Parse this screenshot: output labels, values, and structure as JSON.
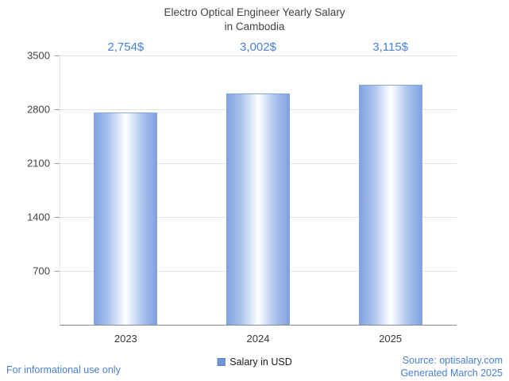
{
  "title": {
    "line1": "Electro Optical Engineer Yearly Salary",
    "line2": "in Cambodia"
  },
  "chart_data": {
    "type": "bar",
    "title": "Electro Optical Engineer Yearly Salary in Cambodia",
    "categories": [
      "2023",
      "2024",
      "2025"
    ],
    "series": [
      {
        "name": "Salary in USD",
        "values": [
          2754,
          3002,
          3115
        ]
      }
    ],
    "value_labels": [
      "2,754$",
      "3,002$",
      "3,115$"
    ],
    "xlabel": "",
    "ylabel": "",
    "ylim": [
      0,
      3500
    ],
    "yticks": [
      700,
      1400,
      2100,
      2800,
      3500
    ],
    "grid": true,
    "legend_position": "bottom",
    "colors": {
      "bar_edge": "#7fa3e0",
      "bar_center": "#ffffff",
      "value_label_text": "#4a80d6",
      "footer_text": "#4a80d6",
      "title_text": "#424242"
    }
  },
  "legend": {
    "label": "Salary in USD"
  },
  "footer": {
    "disclaimer": "For informational use only",
    "source": "Source: optisalary.com",
    "generated": "Generated March 2025"
  }
}
